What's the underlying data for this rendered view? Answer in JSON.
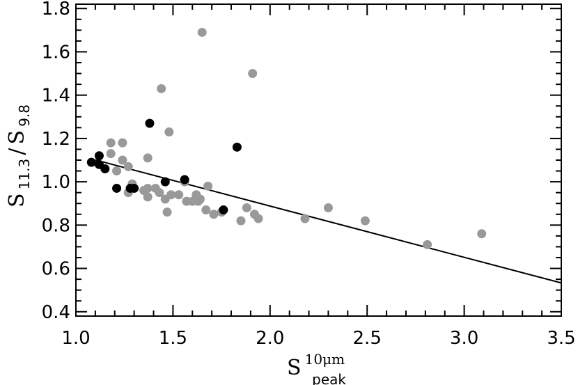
{
  "chart_data": {
    "type": "scatter",
    "xlabel": {
      "main": "S",
      "sup": "10μm",
      "sub": "peak"
    },
    "ylabel": {
      "main1": "S",
      "sub1": "11.3",
      "slash": "/",
      "main2": "S",
      "sub2": "9.8"
    },
    "xlim": [
      1.0,
      3.5
    ],
    "ylim": [
      0.38,
      1.82
    ],
    "xticks": [
      1.0,
      1.5,
      2.0,
      2.5,
      3.0,
      3.5
    ],
    "xtick_labels": [
      "1.0",
      "1.5",
      "2.0",
      "2.5",
      "3.0",
      "3.5"
    ],
    "yticks": [
      0.4,
      0.6,
      0.8,
      1.0,
      1.2,
      1.4,
      1.6,
      1.8
    ],
    "ytick_labels": [
      "0.4",
      "0.6",
      "0.8",
      "1.0",
      "1.2",
      "1.4",
      "1.6",
      "1.8"
    ],
    "grid": false,
    "series": [
      {
        "color": "#999999",
        "points": [
          [
            1.18,
            1.18
          ],
          [
            1.18,
            1.13
          ],
          [
            1.21,
            1.05
          ],
          [
            1.24,
            1.18
          ],
          [
            1.24,
            1.1
          ],
          [
            1.27,
            1.07
          ],
          [
            1.27,
            0.95
          ],
          [
            1.29,
            0.99
          ],
          [
            1.35,
            0.96
          ],
          [
            1.37,
            0.97
          ],
          [
            1.37,
            0.93
          ],
          [
            1.37,
            1.11
          ],
          [
            1.41,
            0.97
          ],
          [
            1.43,
            0.95
          ],
          [
            1.44,
            1.43
          ],
          [
            1.46,
            0.92
          ],
          [
            1.47,
            0.86
          ],
          [
            1.48,
            1.23
          ],
          [
            1.49,
            0.94
          ],
          [
            1.53,
            0.94
          ],
          [
            1.56,
            1.0
          ],
          [
            1.57,
            0.91
          ],
          [
            1.6,
            0.91
          ],
          [
            1.62,
            0.94
          ],
          [
            1.63,
            0.91
          ],
          [
            1.64,
            0.92
          ],
          [
            1.65,
            1.69
          ],
          [
            1.67,
            0.87
          ],
          [
            1.68,
            0.98
          ],
          [
            1.71,
            0.85
          ],
          [
            1.75,
            0.86
          ],
          [
            1.85,
            0.82
          ],
          [
            1.88,
            0.88
          ],
          [
            1.91,
            1.5
          ],
          [
            1.92,
            0.85
          ],
          [
            1.94,
            0.83
          ],
          [
            2.18,
            0.83
          ],
          [
            2.3,
            0.88
          ],
          [
            2.49,
            0.82
          ],
          [
            2.81,
            0.71
          ],
          [
            3.09,
            0.76
          ]
        ]
      },
      {
        "color": "#000000",
        "points": [
          [
            1.08,
            1.09
          ],
          [
            1.12,
            1.12
          ],
          [
            1.12,
            1.08
          ],
          [
            1.15,
            1.06
          ],
          [
            1.21,
            0.97
          ],
          [
            1.28,
            0.97
          ],
          [
            1.3,
            0.97
          ],
          [
            1.38,
            1.27
          ],
          [
            1.46,
            1.0
          ],
          [
            1.56,
            1.01
          ],
          [
            1.76,
            0.87
          ],
          [
            1.83,
            1.16
          ]
        ]
      }
    ],
    "fit_line": {
      "x": [
        1.1,
        3.5
      ],
      "y": [
        1.101,
        0.533
      ]
    }
  }
}
